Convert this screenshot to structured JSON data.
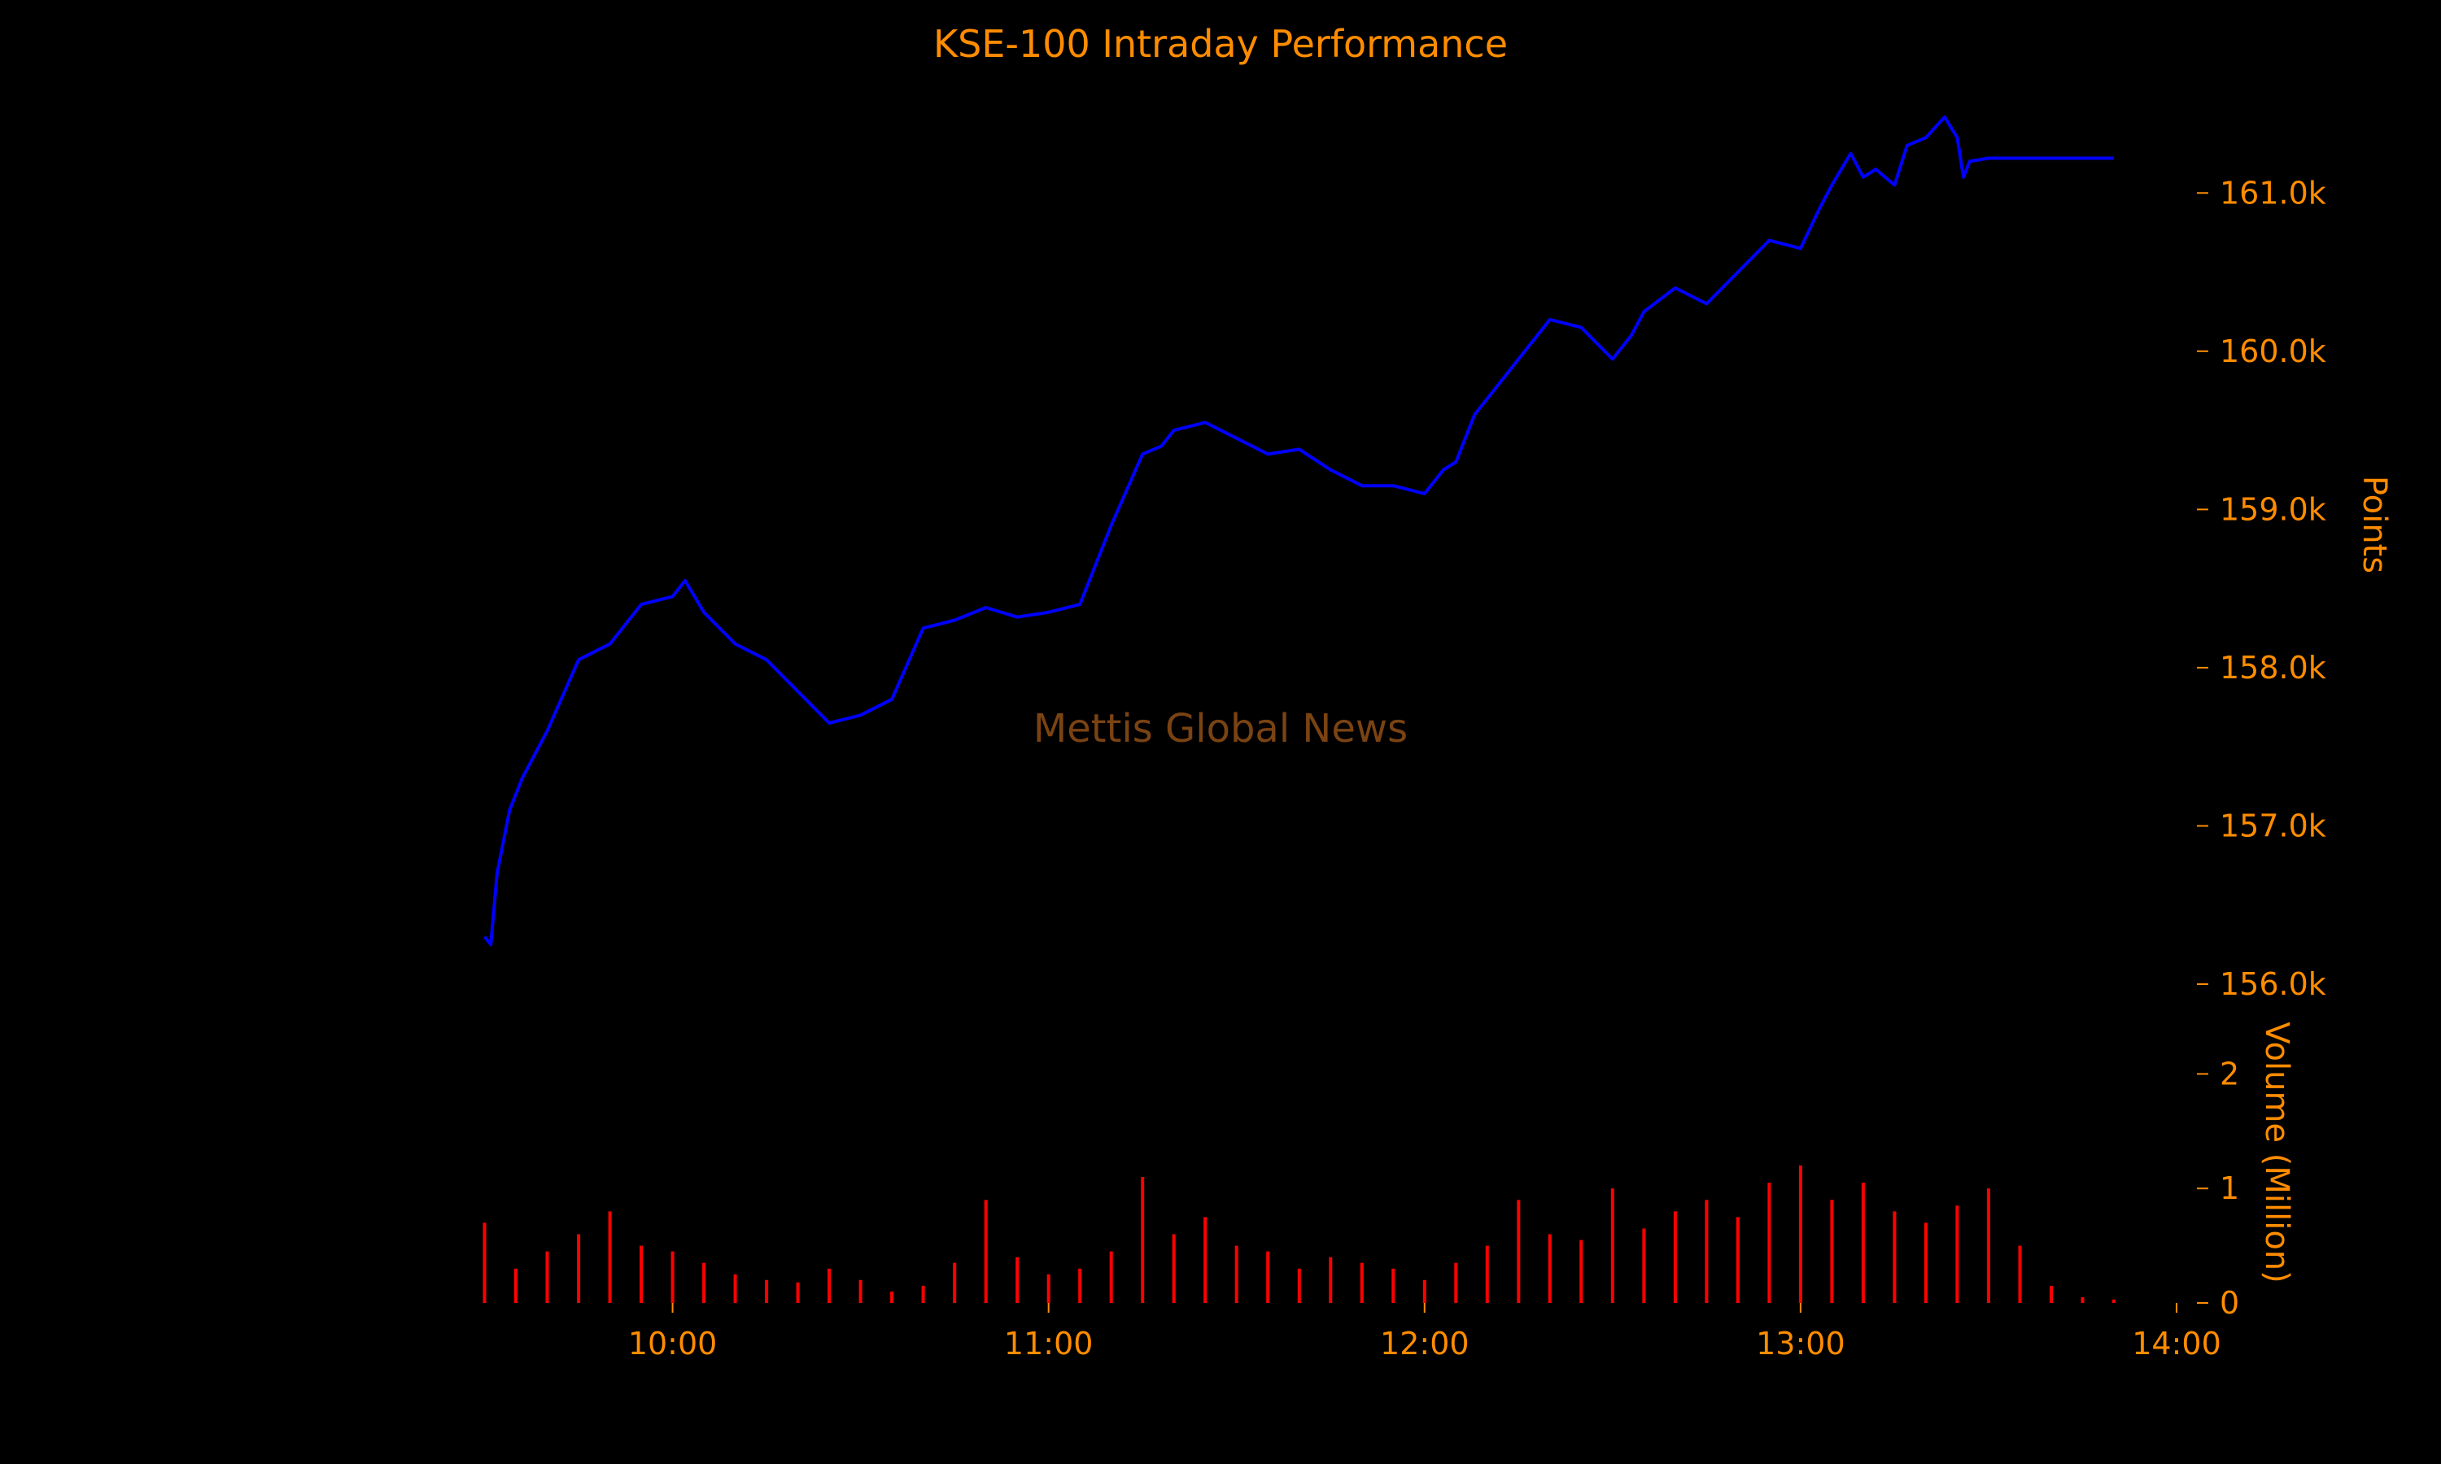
{
  "colors": {
    "background": "#000000",
    "text": "#FF8C00",
    "price_line": "#0000FF",
    "volume_bars": "#FF0000",
    "watermark": "#7A4312"
  },
  "chart_data": {
    "type": "line",
    "title": "KSE-100 Intraday Performance",
    "watermark": "Mettis Global News",
    "x_axis": {
      "type": "time",
      "range": [
        "09:15",
        "14:00"
      ],
      "ticks": [
        {
          "time": "10:00",
          "label": "10:00"
        },
        {
          "time": "11:00",
          "label": "11:00"
        },
        {
          "time": "12:00",
          "label": "12:00"
        },
        {
          "time": "13:00",
          "label": "13:00"
        },
        {
          "time": "14:00",
          "label": "14:00"
        }
      ]
    },
    "price_axis": {
      "label": "Points",
      "position": "right",
      "range": [
        156000,
        161500
      ],
      "ticks": [
        {
          "value": 156000,
          "label": "156.0k"
        },
        {
          "value": 157000,
          "label": "157.0k"
        },
        {
          "value": 158000,
          "label": "158.0k"
        },
        {
          "value": 159000,
          "label": "159.0k"
        },
        {
          "value": 160000,
          "label": "160.0k"
        },
        {
          "value": 161000,
          "label": "161.0k"
        }
      ]
    },
    "volume_axis": {
      "label": "Volume (Million)",
      "position": "right",
      "range": [
        0,
        2.5
      ],
      "ticks": [
        {
          "value": 0,
          "label": "0"
        },
        {
          "value": 1,
          "label": "1"
        },
        {
          "value": 2,
          "label": "2"
        }
      ]
    },
    "grid": false,
    "price_series": {
      "x": [
        "09:30",
        "09:31",
        "09:32",
        "09:34",
        "09:36",
        "09:40",
        "09:45",
        "09:50",
        "09:55",
        "10:00",
        "10:02",
        "10:05",
        "10:10",
        "10:15",
        "10:20",
        "10:25",
        "10:28",
        "10:30",
        "10:35",
        "10:40",
        "10:45",
        "10:50",
        "10:55",
        "11:00",
        "11:05",
        "11:10",
        "11:15",
        "11:18",
        "11:20",
        "11:25",
        "11:30",
        "11:35",
        "11:40",
        "11:45",
        "11:50",
        "11:55",
        "12:00",
        "12:03",
        "12:05",
        "12:08",
        "12:10",
        "12:15",
        "12:20",
        "12:25",
        "12:30",
        "12:33",
        "12:35",
        "12:40",
        "12:45",
        "12:50",
        "12:55",
        "13:00",
        "13:03",
        "13:05",
        "13:08",
        "13:10",
        "13:12",
        "13:15",
        "13:17",
        "13:20",
        "13:23",
        "13:25",
        "13:26",
        "13:27",
        "13:30",
        "13:35",
        "13:40",
        "13:45",
        "13:50"
      ],
      "y": [
        156300,
        156250,
        156700,
        157100,
        157300,
        157600,
        158050,
        158150,
        158400,
        158450,
        158550,
        158350,
        158150,
        158050,
        157850,
        157650,
        157680,
        157700,
        157800,
        158250,
        158300,
        158380,
        158320,
        158350,
        158400,
        158900,
        159350,
        159400,
        159500,
        159550,
        159450,
        159350,
        159380,
        159250,
        159150,
        159150,
        159100,
        159250,
        159300,
        159600,
        159700,
        159950,
        160200,
        160150,
        159950,
        160100,
        160250,
        160400,
        160300,
        160500,
        160700,
        160650,
        160900,
        161050,
        161250,
        161100,
        161150,
        161050,
        161300,
        161350,
        161480,
        161350,
        161100,
        161200,
        161220,
        161220,
        161220,
        161220,
        161220
      ]
    },
    "volume_series": {
      "x": [
        "09:30",
        "09:35",
        "09:40",
        "09:45",
        "09:50",
        "09:55",
        "10:00",
        "10:05",
        "10:10",
        "10:15",
        "10:20",
        "10:25",
        "10:30",
        "10:35",
        "10:40",
        "10:45",
        "10:50",
        "10:55",
        "11:00",
        "11:05",
        "11:10",
        "11:15",
        "11:20",
        "11:25",
        "11:30",
        "11:35",
        "11:40",
        "11:45",
        "11:50",
        "11:55",
        "12:00",
        "12:05",
        "12:10",
        "12:15",
        "12:20",
        "12:25",
        "12:30",
        "12:35",
        "12:40",
        "12:45",
        "12:50",
        "12:55",
        "13:00",
        "13:05",
        "13:10",
        "13:15",
        "13:20",
        "13:25",
        "13:30",
        "13:35",
        "13:40",
        "13:45",
        "13:50"
      ],
      "y": [
        0.7,
        0.3,
        0.45,
        0.6,
        0.8,
        0.5,
        0.45,
        0.35,
        0.25,
        0.2,
        0.18,
        0.3,
        0.2,
        0.1,
        0.15,
        0.35,
        0.9,
        0.4,
        0.25,
        0.3,
        0.45,
        1.1,
        0.6,
        0.75,
        0.5,
        0.45,
        0.3,
        0.4,
        0.35,
        0.3,
        0.2,
        0.35,
        0.5,
        0.9,
        0.6,
        0.55,
        1.0,
        0.65,
        0.8,
        0.9,
        0.75,
        1.05,
        1.2,
        0.9,
        1.05,
        0.8,
        0.7,
        0.85,
        1.0,
        0.5,
        0.15,
        0.05,
        0.03
      ]
    }
  }
}
